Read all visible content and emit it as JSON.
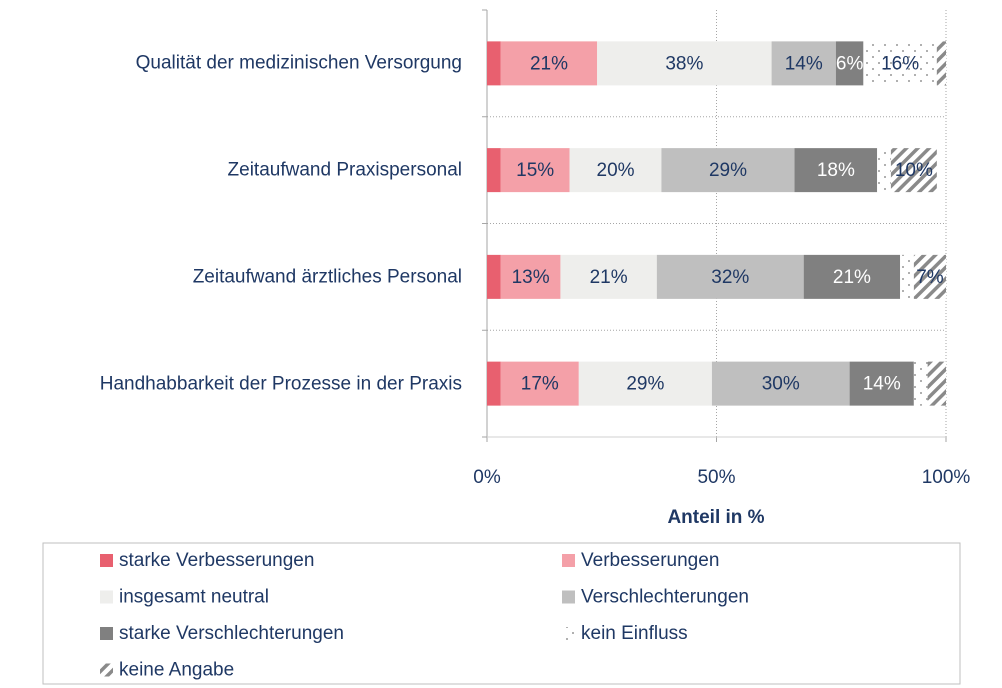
{
  "chart_data": {
    "type": "stacked-barh",
    "categories": [
      "Qualität der medizinischen Versorgung",
      "Zeitaufwand Praxispersonal",
      "Zeitaufwand ärztliches Personal",
      "Handhabbarkeit der Prozesse in der Praxis"
    ],
    "series": [
      {
        "name": "starke Verbesserungen",
        "color": "#e8606f",
        "values": [
          3,
          3,
          3,
          3
        ],
        "value_labels": [
          null,
          null,
          null,
          null
        ]
      },
      {
        "name": "Verbesserungen",
        "color": "#f4a0a8",
        "values": [
          21,
          15,
          13,
          17
        ],
        "value_labels": [
          "21%",
          "15%",
          "13%",
          "17%"
        ]
      },
      {
        "name": "insgesamt neutral",
        "color": "#eeeeec",
        "values": [
          38,
          20,
          21,
          29
        ],
        "value_labels": [
          "38%",
          "20%",
          "21%",
          "29%"
        ]
      },
      {
        "name": "Verschlechterungen",
        "color": "#bfbfbf",
        "values": [
          14,
          29,
          32,
          30
        ],
        "value_labels": [
          "14%",
          "29%",
          "32%",
          "30%"
        ]
      },
      {
        "name": "starke Verschlechterungen",
        "color": "#808080",
        "values": [
          6,
          18,
          21,
          14
        ],
        "value_labels": [
          "6%",
          "18%",
          "21%",
          "14%"
        ]
      },
      {
        "name": "kein Einfluss",
        "color": "dots",
        "values": [
          16,
          3,
          3,
          3
        ],
        "value_labels": [
          "16%",
          null,
          null,
          null
        ]
      },
      {
        "name": "keine Angabe",
        "color": "hatch",
        "values": [
          2,
          10,
          7,
          4
        ],
        "value_labels": [
          null,
          "10%",
          "7%",
          null
        ]
      }
    ],
    "xlabel": "Anteil in %",
    "xlim": [
      0,
      100
    ],
    "xticks": [
      {
        "value": 0,
        "label": "0%"
      },
      {
        "value": 50,
        "label": "50%"
      },
      {
        "value": 100,
        "label": "100%"
      }
    ],
    "grid": true
  }
}
